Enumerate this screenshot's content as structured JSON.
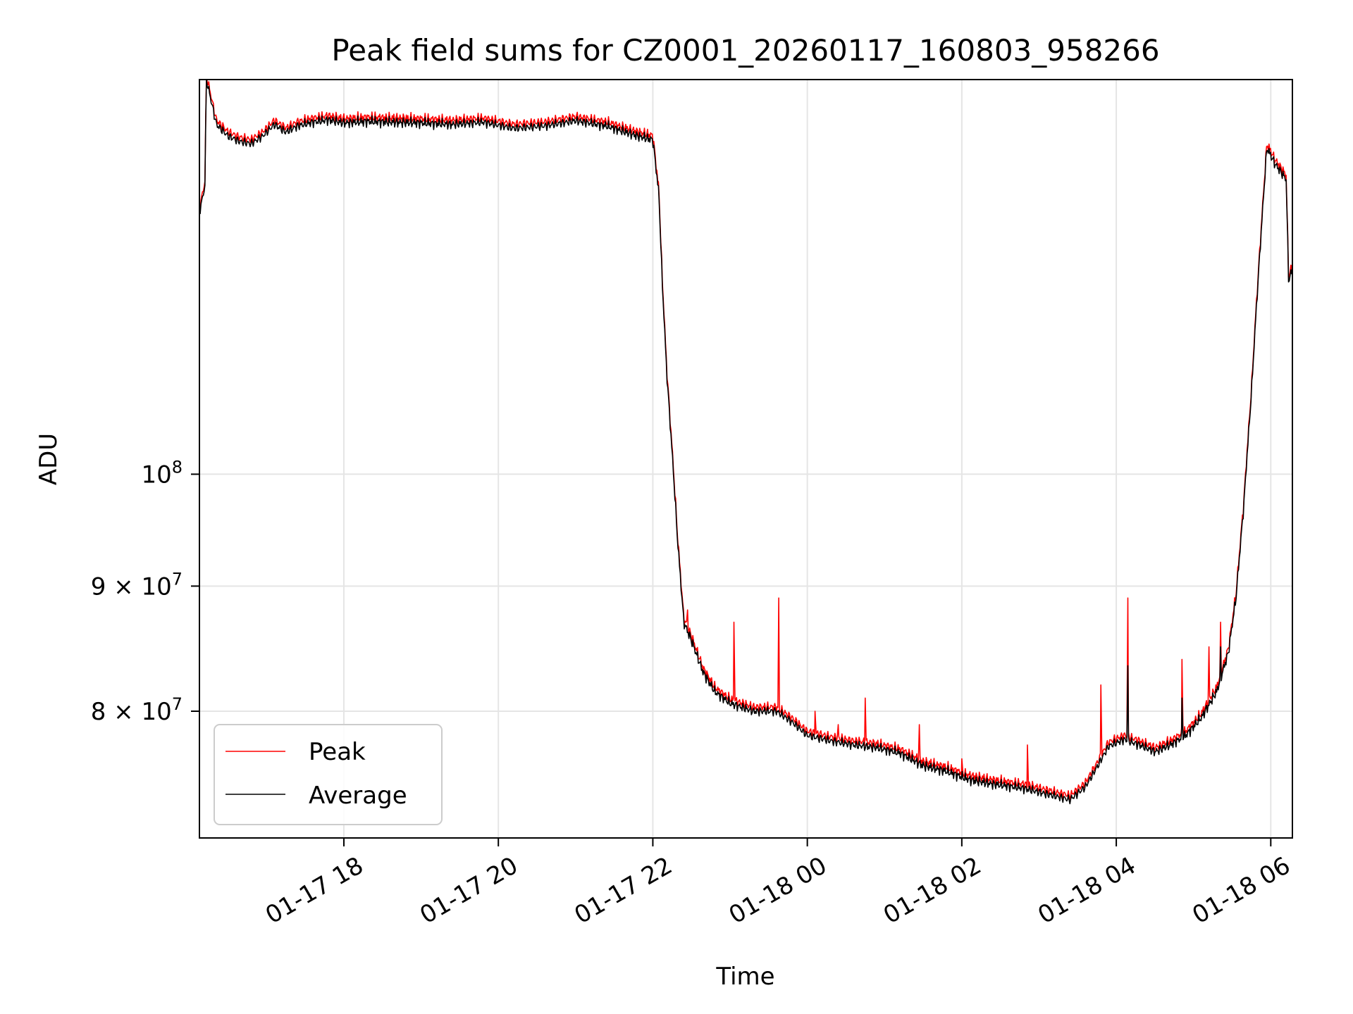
{
  "chart_data": {
    "type": "line",
    "title": "Peak field sums for CZ0001_20260117_160803_958266",
    "xlabel": "Time",
    "ylabel": "ADU",
    "yscale": "log",
    "xlim_hours": [
      16.13,
      30.28
    ],
    "ylim": [
      71000000,
      145000000
    ],
    "grid": true,
    "legend_placement": "lower-left",
    "x_ticks": [
      {
        "label": "01-17 18",
        "hour": 18
      },
      {
        "label": "01-17 20",
        "hour": 20
      },
      {
        "label": "01-17 22",
        "hour": 22
      },
      {
        "label": "01-18 00",
        "hour": 24
      },
      {
        "label": "01-18 02",
        "hour": 26
      },
      {
        "label": "01-18 04",
        "hour": 28
      },
      {
        "label": "01-18 06",
        "hour": 30
      }
    ],
    "y_ticks": [
      {
        "base": "10",
        "exp": "8",
        "value": 100000000
      },
      {
        "base": "9 × 10",
        "exp": "7",
        "value": 90000000
      },
      {
        "base": "8 × 10",
        "exp": "7",
        "value": 80000000
      }
    ],
    "series": [
      {
        "name": "Peak",
        "color": "#ff0000",
        "offset_ratio": 1.004,
        "spikes": [
          [
            22.45,
            88000000
          ],
          [
            23.05,
            87000000
          ],
          [
            23.63,
            89000000
          ],
          [
            24.1,
            80000000
          ],
          [
            24.4,
            79000000
          ],
          [
            24.75,
            81000000
          ],
          [
            25.45,
            79000000
          ],
          [
            26.0,
            76500000
          ],
          [
            26.85,
            77500000
          ],
          [
            27.8,
            82000000
          ],
          [
            28.15,
            89000000
          ],
          [
            28.85,
            84000000
          ],
          [
            29.2,
            85000000
          ],
          [
            29.35,
            87000000
          ]
        ]
      },
      {
        "name": "Average",
        "color": "#000000",
        "offset_ratio": 1.0,
        "spikes": [
          [
            28.15,
            83500000
          ],
          [
            28.85,
            81000000
          ],
          [
            29.35,
            85000000
          ]
        ]
      }
    ],
    "base_curve": [
      [
        16.13,
        128000000
      ],
      [
        16.2,
        131000000
      ],
      [
        16.22,
        145000000
      ],
      [
        16.35,
        139000000
      ],
      [
        16.5,
        137500000
      ],
      [
        16.65,
        136800000
      ],
      [
        16.8,
        136500000
      ],
      [
        16.95,
        137500000
      ],
      [
        17.1,
        139000000
      ],
      [
        17.25,
        138000000
      ],
      [
        17.4,
        138800000
      ],
      [
        17.6,
        139300000
      ],
      [
        17.8,
        139600000
      ],
      [
        18.0,
        139200000
      ],
      [
        18.3,
        139400000
      ],
      [
        18.6,
        139300000
      ],
      [
        19.0,
        139200000
      ],
      [
        19.4,
        139000000
      ],
      [
        19.8,
        139300000
      ],
      [
        20.2,
        138500000
      ],
      [
        20.6,
        138800000
      ],
      [
        21.0,
        139500000
      ],
      [
        21.4,
        138800000
      ],
      [
        21.8,
        137500000
      ],
      [
        22.0,
        137000000
      ],
      [
        22.08,
        130000000
      ],
      [
        22.12,
        120000000
      ],
      [
        22.18,
        110000000
      ],
      [
        22.25,
        102000000
      ],
      [
        22.32,
        94000000
      ],
      [
        22.4,
        87000000
      ],
      [
        22.5,
        85500000
      ],
      [
        22.65,
        83000000
      ],
      [
        22.8,
        81500000
      ],
      [
        23.0,
        80600000
      ],
      [
        23.3,
        80000000
      ],
      [
        23.6,
        80000000
      ],
      [
        23.8,
        79200000
      ],
      [
        24.0,
        78200000
      ],
      [
        24.3,
        77800000
      ],
      [
        24.6,
        77500000
      ],
      [
        24.9,
        77300000
      ],
      [
        25.2,
        76900000
      ],
      [
        25.5,
        76000000
      ],
      [
        25.8,
        75600000
      ],
      [
        26.1,
        75000000
      ],
      [
        26.4,
        74700000
      ],
      [
        26.8,
        74400000
      ],
      [
        27.1,
        74000000
      ],
      [
        27.4,
        73600000
      ],
      [
        27.6,
        74500000
      ],
      [
        27.75,
        75900000
      ],
      [
        27.9,
        77400000
      ],
      [
        28.1,
        77900000
      ],
      [
        28.3,
        77500000
      ],
      [
        28.5,
        77000000
      ],
      [
        28.7,
        77500000
      ],
      [
        28.9,
        78200000
      ],
      [
        29.1,
        79500000
      ],
      [
        29.3,
        81500000
      ],
      [
        29.45,
        84500000
      ],
      [
        29.55,
        89000000
      ],
      [
        29.65,
        97000000
      ],
      [
        29.75,
        108000000
      ],
      [
        29.85,
        122000000
      ],
      [
        29.95,
        136000000
      ],
      [
        30.05,
        134000000
      ],
      [
        30.2,
        132000000
      ],
      [
        30.23,
        120000000
      ],
      [
        30.27,
        121000000
      ],
      [
        30.28,
        121500000
      ]
    ]
  }
}
